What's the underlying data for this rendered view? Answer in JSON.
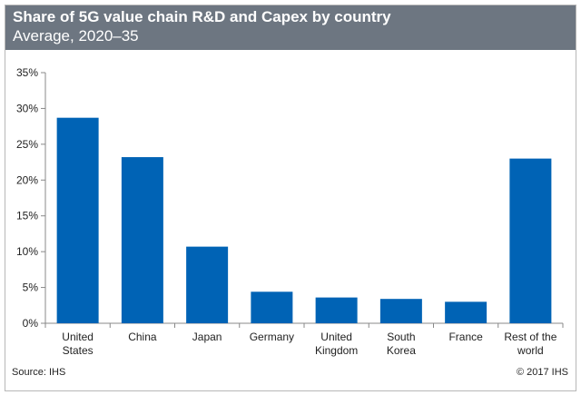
{
  "header": {
    "title": "Share of 5G value chain R&D and Capex by country",
    "subtitle": "Average, 2020–35"
  },
  "footer": {
    "source": "Source: IHS",
    "copyright": "© 2017 IHS"
  },
  "colors": {
    "header_bg": "#6d7681",
    "bar": "#0063b5",
    "axis": "#888888"
  },
  "chart_data": {
    "type": "bar",
    "title": "Share of 5G value chain R&D and Capex by country",
    "subtitle": "Average, 2020–35",
    "categories": [
      [
        "United",
        "States"
      ],
      [
        "China"
      ],
      [
        "Japan"
      ],
      [
        "Germany"
      ],
      [
        "United",
        "Kingdom"
      ],
      [
        "South",
        "Korea"
      ],
      [
        "France"
      ],
      [
        "Rest of the",
        "world"
      ]
    ],
    "values": [
      28.7,
      23.2,
      10.7,
      4.4,
      3.6,
      3.4,
      3.0,
      23.0
    ],
    "ylim": [
      0,
      35
    ],
    "yticks": [
      0,
      5,
      10,
      15,
      20,
      25,
      30,
      35
    ],
    "ytick_labels": [
      "0%",
      "5%",
      "10%",
      "15%",
      "20%",
      "25%",
      "30%",
      "35%"
    ],
    "xlabel": "",
    "ylabel": "",
    "grid": false,
    "legend": "none"
  }
}
